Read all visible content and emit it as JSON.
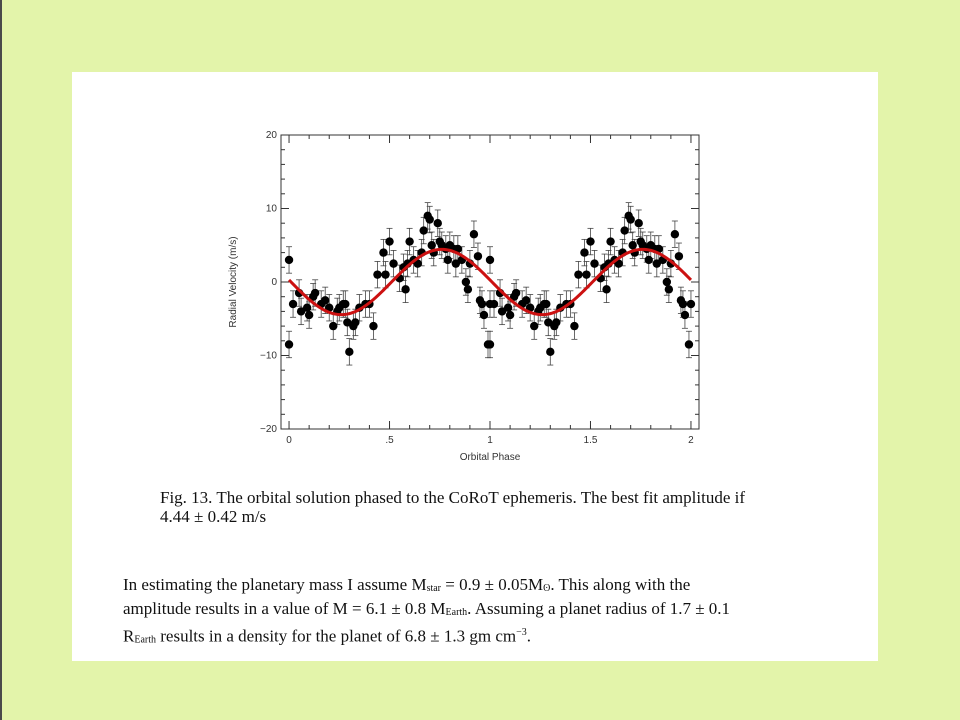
{
  "figure": {
    "caption_line1": "Fig. 13. The orbital solution phased to the CoRoT ephemeris. The best fit amplitude if",
    "caption_line2": "4.44 ± 0.42 m/s"
  },
  "paragraph": {
    "l1_a": "In estimating the planetary mass I assume M",
    "l1_sub": "star",
    "l1_b": " = 0.9 ± 0.05M",
    "l1_sun": "ʘ",
    "l1_c": ". This along with the",
    "l2_a": "amplitude results in a value of M = 6.1 ± 0.8 M",
    "l2_sub": "Earth",
    "l2_b": ". Assuming a planet radius of 1.7 ± 0.1",
    "l3_a": "R",
    "l3_sub": "Earth",
    "l3_b": " results in a density for the planet of 6.8 ± 1.3 gm cm",
    "l3_sup": "−3",
    "l3_c": "."
  },
  "chart_data": {
    "type": "scatter",
    "xlabel": "Orbital Phase",
    "ylabel": "Radial Velocity (m/s)",
    "xlim": [
      -0.04,
      2.04
    ],
    "ylim": [
      -20,
      20
    ],
    "x_ticks": [
      0,
      0.5,
      1,
      1.5,
      2
    ],
    "x_tick_labels": [
      "0",
      ".5",
      "1",
      "1.5",
      "2"
    ],
    "y_ticks": [
      -20,
      -10,
      0,
      10,
      20
    ],
    "y_tick_labels": [
      "−20",
      "−10",
      "0",
      "10",
      "20"
    ],
    "grid": false,
    "colors": {
      "points": "#000000",
      "fit": "#cc1111"
    },
    "fit": {
      "amplitude": 4.44,
      "phase_of_max": 0.76
    },
    "series": [
      {
        "error": 1.8,
        "points": [
          [
            0.0,
            3.0
          ],
          [
            0.0,
            -8.5
          ],
          [
            0.02,
            -3.0
          ],
          [
            0.05,
            -1.5
          ],
          [
            0.06,
            -4.0
          ],
          [
            0.09,
            -3.5
          ],
          [
            0.1,
            -4.5
          ],
          [
            0.12,
            -2.0
          ],
          [
            0.13,
            -1.5
          ],
          [
            0.16,
            -3.0
          ],
          [
            0.18,
            -2.5
          ],
          [
            0.2,
            -3.5
          ],
          [
            0.22,
            -6.0
          ],
          [
            0.24,
            -4.0
          ],
          [
            0.25,
            -3.5
          ],
          [
            0.27,
            -3.0
          ],
          [
            0.28,
            -3.0
          ],
          [
            0.29,
            -5.5
          ],
          [
            0.3,
            -9.5
          ],
          [
            0.32,
            -6.0
          ],
          [
            0.33,
            -5.5
          ],
          [
            0.35,
            -3.5
          ],
          [
            0.38,
            -3.0
          ],
          [
            0.4,
            -3.0
          ],
          [
            0.42,
            -6.0
          ],
          [
            0.44,
            1.0
          ],
          [
            0.47,
            4.0
          ],
          [
            0.48,
            1.0
          ],
          [
            0.5,
            5.5
          ],
          [
            0.52,
            2.5
          ],
          [
            0.55,
            0.5
          ],
          [
            0.57,
            2.0
          ],
          [
            0.58,
            -1.0
          ],
          [
            0.59,
            2.5
          ],
          [
            0.6,
            5.5
          ],
          [
            0.62,
            3.0
          ],
          [
            0.64,
            2.5
          ],
          [
            0.66,
            4.0
          ],
          [
            0.67,
            7.0
          ],
          [
            0.69,
            9.0
          ],
          [
            0.7,
            8.5
          ],
          [
            0.71,
            5.0
          ],
          [
            0.72,
            4.0
          ],
          [
            0.74,
            8.0
          ],
          [
            0.75,
            5.5
          ],
          [
            0.76,
            5.0
          ],
          [
            0.78,
            4.5
          ],
          [
            0.79,
            3.0
          ],
          [
            0.8,
            5.0
          ],
          [
            0.82,
            4.5
          ],
          [
            0.83,
            2.5
          ],
          [
            0.84,
            4.5
          ],
          [
            0.86,
            3.0
          ],
          [
            0.88,
            0.0
          ],
          [
            0.89,
            -1.0
          ],
          [
            0.9,
            2.5
          ],
          [
            0.92,
            6.5
          ],
          [
            0.94,
            3.5
          ],
          [
            0.95,
            -2.5
          ],
          [
            0.96,
            -3.0
          ],
          [
            0.97,
            -4.5
          ],
          [
            0.99,
            -8.5
          ],
          [
            1.0,
            -3.0
          ]
        ]
      }
    ]
  }
}
